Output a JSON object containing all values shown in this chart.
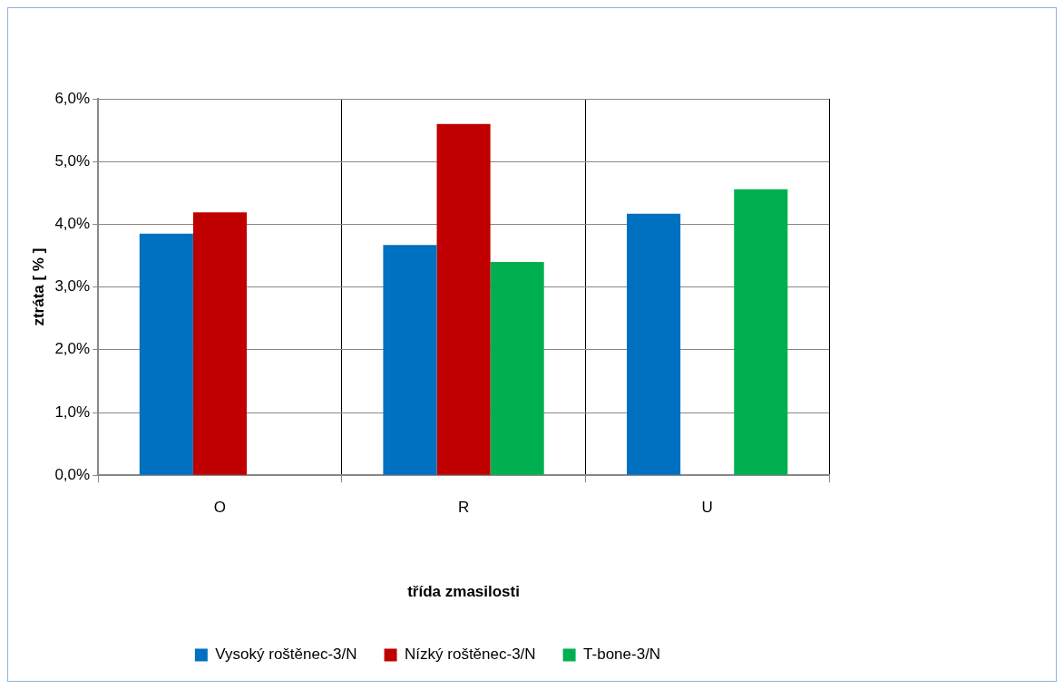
{
  "chart_data": {
    "type": "bar",
    "xlabel": "třída zmasilosti",
    "ylabel": "ztráta [ % ]",
    "categories": [
      "O",
      "R",
      "U"
    ],
    "series": [
      {
        "name": "Vysoký roštěnec-3/N",
        "color": "#0070c0",
        "values": [
          3.85,
          3.67,
          4.17
        ]
      },
      {
        "name": "Nízký roštěnec-3/N",
        "color": "#c00000",
        "values": [
          4.19,
          5.6,
          null
        ]
      },
      {
        "name": "T-bone-3/N",
        "color": "#00b050",
        "values": [
          null,
          3.4,
          4.56
        ]
      }
    ],
    "ylim": [
      0,
      6
    ],
    "yticks": [
      {
        "value": 0,
        "label": "0,0%"
      },
      {
        "value": 1,
        "label": "1,0%"
      },
      {
        "value": 2,
        "label": "2,0%"
      },
      {
        "value": 3,
        "label": "3,0%"
      },
      {
        "value": 4,
        "label": "4,0%"
      },
      {
        "value": 5,
        "label": "5,0%"
      },
      {
        "value": 6,
        "label": "6,0%"
      }
    ],
    "grid": true,
    "legend": "bottom"
  }
}
